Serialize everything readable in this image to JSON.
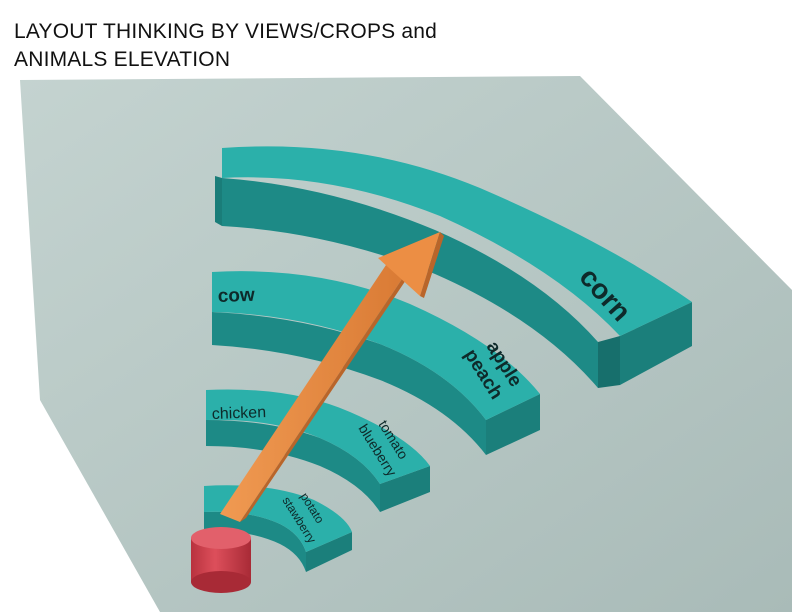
{
  "title": {
    "line1": "LAYOUT THINKING BY VIEWS/CROPS and",
    "line2": "ANIMALS ELEVATION"
  },
  "rings": {
    "ring1": {
      "labels": [
        "potato",
        "stawberry"
      ]
    },
    "ring2": {
      "animal": "chicken",
      "crops": [
        "tomato",
        "blueberry"
      ]
    },
    "ring3": {
      "animal": "cow",
      "crops": [
        "apple",
        "peach"
      ]
    },
    "ring4": {
      "crops": [
        "corn"
      ]
    }
  },
  "colors": {
    "ring_top": "#2aa6a1",
    "ring_front": "#1f8d89",
    "ground": "#b9c9c6",
    "arrow": "#e8883f",
    "origin": "#d9434f"
  }
}
